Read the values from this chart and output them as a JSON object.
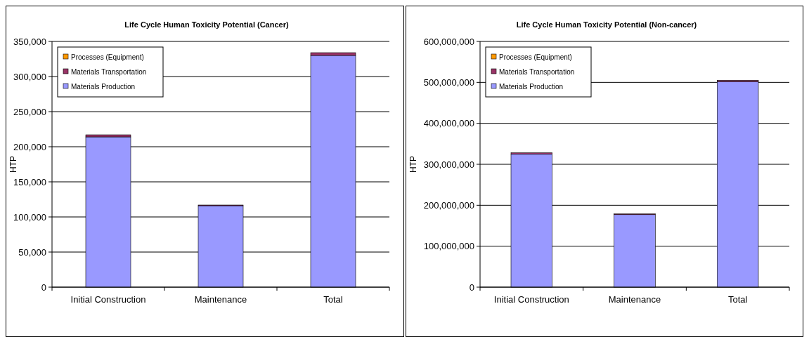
{
  "chart_data": [
    {
      "type": "bar",
      "title": "Life Cycle  Human  Toxicity  Potential  (Cancer)",
      "ylabel": "HTP",
      "categories": [
        "Initial Construction",
        "Maintenance",
        "Total"
      ],
      "stacked": true,
      "grid": "y",
      "legend": "top left",
      "ylim": [
        0,
        350000
      ],
      "yticks": [
        {
          "value": 0,
          "label": "0"
        },
        {
          "value": 50000,
          "label": "50,000"
        },
        {
          "value": 100000,
          "label": "100,000"
        },
        {
          "value": 150000,
          "label": "150,000"
        },
        {
          "value": 200000,
          "label": "200,000"
        },
        {
          "value": 250000,
          "label": "250,000"
        },
        {
          "value": 300000,
          "label": "300,000"
        },
        {
          "value": 350000,
          "label": "350,000"
        }
      ],
      "series": [
        {
          "name": "Materials Production",
          "color": "#9999ff",
          "values": [
            214000,
            116000,
            330000
          ]
        },
        {
          "name": "Materials Transportation",
          "color": "#993366",
          "values": [
            3000,
            1000,
            4000
          ]
        },
        {
          "name": "Processes (Equipment)",
          "color": "#ff9900",
          "values": [
            0,
            0,
            0
          ]
        }
      ]
    },
    {
      "type": "bar",
      "title": "Life Cycle  Human  Toxicity  Potential  (Non-cancer)",
      "ylabel": "HTP",
      "categories": [
        "Initial Construction",
        "Maintenance",
        "Total"
      ],
      "stacked": true,
      "grid": "y",
      "legend": "top left",
      "ylim": [
        0,
        600000000
      ],
      "yticks": [
        {
          "value": 0,
          "label": "0"
        },
        {
          "value": 100000000,
          "label": "100,000,000"
        },
        {
          "value": 200000000,
          "label": "200,000,000"
        },
        {
          "value": 300000000,
          "label": "300,000,000"
        },
        {
          "value": 400000000,
          "label": "400,000,000"
        },
        {
          "value": 500000000,
          "label": "500,000,000"
        },
        {
          "value": 600000000,
          "label": "600,000,000"
        }
      ],
      "series": [
        {
          "name": "Materials Production",
          "color": "#9999ff",
          "values": [
            325000000,
            177000000,
            502000000
          ]
        },
        {
          "name": "Materials Transportation",
          "color": "#993366",
          "values": [
            3000000,
            2000000,
            3000000
          ]
        },
        {
          "name": "Processes (Equipment)",
          "color": "#ff9900",
          "values": [
            0,
            0,
            0
          ]
        }
      ]
    }
  ]
}
